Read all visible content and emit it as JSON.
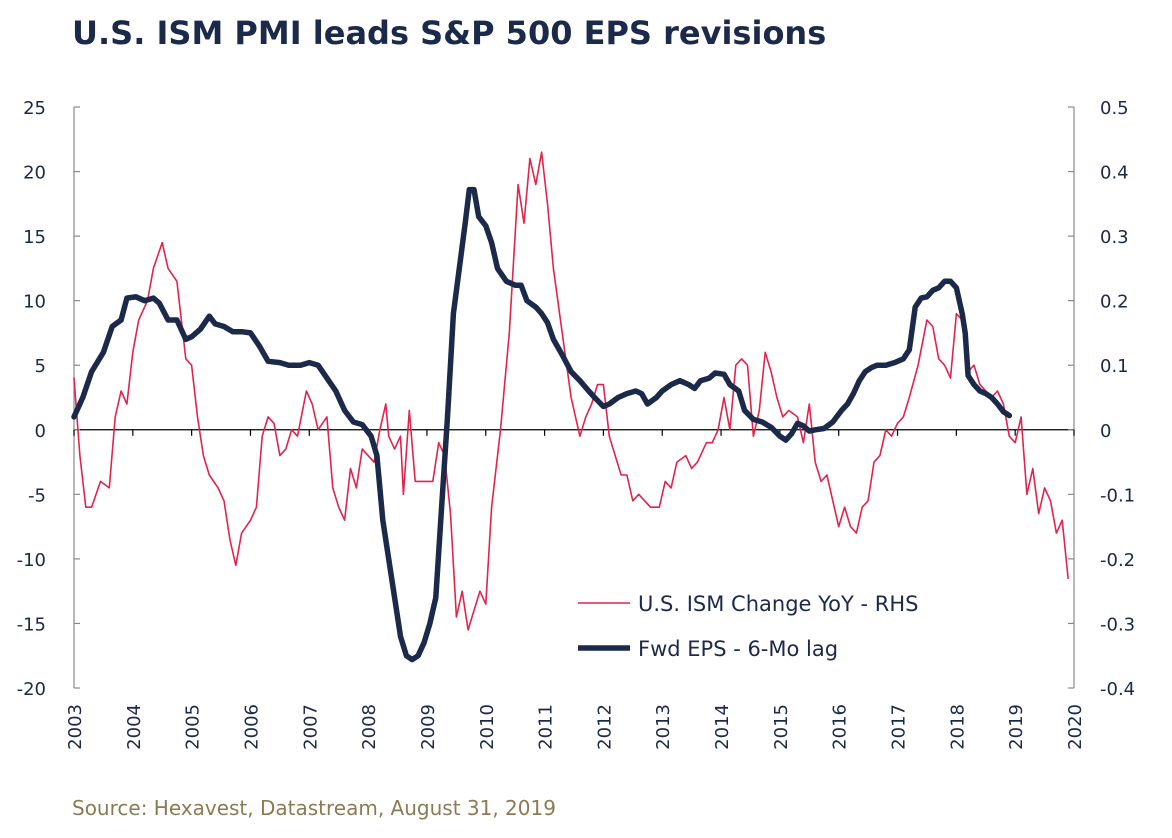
{
  "title": "U.S. ISM PMI leads S&P 500 EPS revisions",
  "source": "Source: Hexavest, Datastream, August 31, 2019",
  "colors": {
    "ism": "#e0244c",
    "eps": "#1b2a4a",
    "axis": "#888888",
    "text": "#1b2a4a",
    "source": "#8a7b52"
  },
  "chart_data": {
    "type": "line",
    "title": "U.S. ISM PMI leads S&P 500 EPS revisions",
    "xlim": [
      2003,
      2020
    ],
    "x_ticks": [
      "2003",
      "2004",
      "2005",
      "2006",
      "2007",
      "2008",
      "2009",
      "2010",
      "2011",
      "2012",
      "2013",
      "2014",
      "2015",
      "2016",
      "2017",
      "2018",
      "2019",
      "2020"
    ],
    "y_left": {
      "ylim": [
        -20,
        25
      ],
      "ticks": [
        "25",
        "20",
        "15",
        "10",
        "5",
        "0",
        "-5",
        "-10",
        "-15",
        "-20"
      ]
    },
    "y_right": {
      "ylim": [
        -0.4,
        0.5
      ],
      "ticks": [
        "0.5",
        "0.4",
        "0.3",
        "0.2",
        "0.1",
        "0",
        "-0.1",
        "-0.2",
        "-0.3",
        "-0.4"
      ]
    },
    "legend_position": "bottom-right",
    "series": [
      {
        "name": "U.S. ISM Change YoY - RHS",
        "axis": "right",
        "style": "thin",
        "points": [
          [
            2003.0,
            0.08
          ],
          [
            2003.1,
            -0.04
          ],
          [
            2003.2,
            -0.12
          ],
          [
            2003.3,
            -0.12
          ],
          [
            2003.45,
            -0.08
          ],
          [
            2003.6,
            -0.09
          ],
          [
            2003.7,
            0.02
          ],
          [
            2003.8,
            0.06
          ],
          [
            2003.9,
            0.04
          ],
          [
            2004.0,
            0.12
          ],
          [
            2004.1,
            0.17
          ],
          [
            2004.25,
            0.2
          ],
          [
            2004.35,
            0.25
          ],
          [
            2004.5,
            0.29
          ],
          [
            2004.6,
            0.25
          ],
          [
            2004.75,
            0.23
          ],
          [
            2004.9,
            0.11
          ],
          [
            2005.0,
            0.1
          ],
          [
            2005.1,
            0.02
          ],
          [
            2005.2,
            -0.04
          ],
          [
            2005.3,
            -0.07
          ],
          [
            2005.45,
            -0.09
          ],
          [
            2005.55,
            -0.11
          ],
          [
            2005.65,
            -0.17
          ],
          [
            2005.75,
            -0.21
          ],
          [
            2005.85,
            -0.16
          ],
          [
            2006.0,
            -0.14
          ],
          [
            2006.1,
            -0.12
          ],
          [
            2006.2,
            -0.01
          ],
          [
            2006.3,
            0.02
          ],
          [
            2006.4,
            0.01
          ],
          [
            2006.5,
            -0.04
          ],
          [
            2006.6,
            -0.03
          ],
          [
            2006.7,
            0.0
          ],
          [
            2006.8,
            -0.01
          ],
          [
            2006.95,
            0.06
          ],
          [
            2007.05,
            0.04
          ],
          [
            2007.15,
            0.0
          ],
          [
            2007.3,
            0.02
          ],
          [
            2007.4,
            -0.09
          ],
          [
            2007.5,
            -0.12
          ],
          [
            2007.6,
            -0.14
          ],
          [
            2007.7,
            -0.06
          ],
          [
            2007.8,
            -0.09
          ],
          [
            2007.9,
            -0.03
          ],
          [
            2008.0,
            -0.04
          ],
          [
            2008.1,
            -0.05
          ],
          [
            2008.2,
            0.0
          ],
          [
            2008.3,
            0.04
          ],
          [
            2008.35,
            -0.01
          ],
          [
            2008.45,
            -0.03
          ],
          [
            2008.55,
            -0.01
          ],
          [
            2008.6,
            -0.1
          ],
          [
            2008.7,
            0.03
          ],
          [
            2008.8,
            -0.08
          ],
          [
            2008.95,
            -0.08
          ],
          [
            2009.1,
            -0.08
          ],
          [
            2009.2,
            -0.02
          ],
          [
            2009.3,
            -0.04
          ],
          [
            2009.4,
            -0.13
          ],
          [
            2009.5,
            -0.29
          ],
          [
            2009.6,
            -0.25
          ],
          [
            2009.7,
            -0.31
          ],
          [
            2009.8,
            -0.28
          ],
          [
            2009.9,
            -0.25
          ],
          [
            2010.0,
            -0.27
          ],
          [
            2010.1,
            -0.12
          ],
          [
            2010.25,
            0.0
          ],
          [
            2010.4,
            0.15
          ],
          [
            2010.55,
            0.38
          ],
          [
            2010.65,
            0.32
          ],
          [
            2010.75,
            0.42
          ],
          [
            2010.85,
            0.38
          ],
          [
            2010.95,
            0.43
          ],
          [
            2011.05,
            0.35
          ],
          [
            2011.15,
            0.25
          ],
          [
            2011.3,
            0.15
          ],
          [
            2011.45,
            0.05
          ],
          [
            2011.6,
            -0.01
          ],
          [
            2011.7,
            0.02
          ],
          [
            2011.8,
            0.04
          ],
          [
            2011.9,
            0.07
          ],
          [
            2012.0,
            0.07
          ],
          [
            2012.1,
            -0.01
          ],
          [
            2012.2,
            -0.04
          ],
          [
            2012.3,
            -0.07
          ],
          [
            2012.4,
            -0.07
          ],
          [
            2012.5,
            -0.11
          ],
          [
            2012.6,
            -0.1
          ],
          [
            2012.7,
            -0.11
          ],
          [
            2012.8,
            -0.12
          ],
          [
            2012.95,
            -0.12
          ],
          [
            2013.05,
            -0.08
          ],
          [
            2013.15,
            -0.09
          ],
          [
            2013.25,
            -0.05
          ],
          [
            2013.4,
            -0.04
          ],
          [
            2013.5,
            -0.06
          ],
          [
            2013.6,
            -0.05
          ],
          [
            2013.75,
            -0.02
          ],
          [
            2013.85,
            -0.02
          ],
          [
            2013.95,
            0.0
          ],
          [
            2014.05,
            0.05
          ],
          [
            2014.15,
            0.0
          ],
          [
            2014.25,
            0.1
          ],
          [
            2014.35,
            0.11
          ],
          [
            2014.45,
            0.1
          ],
          [
            2014.55,
            -0.01
          ],
          [
            2014.65,
            0.03
          ],
          [
            2014.75,
            0.12
          ],
          [
            2014.85,
            0.09
          ],
          [
            2014.95,
            0.05
          ],
          [
            2015.05,
            0.02
          ],
          [
            2015.15,
            0.03
          ],
          [
            2015.3,
            0.02
          ],
          [
            2015.4,
            -0.02
          ],
          [
            2015.5,
            0.04
          ],
          [
            2015.6,
            -0.05
          ],
          [
            2015.7,
            -0.08
          ],
          [
            2015.8,
            -0.07
          ],
          [
            2015.9,
            -0.11
          ],
          [
            2016.0,
            -0.15
          ],
          [
            2016.1,
            -0.12
          ],
          [
            2016.2,
            -0.15
          ],
          [
            2016.3,
            -0.16
          ],
          [
            2016.4,
            -0.12
          ],
          [
            2016.5,
            -0.11
          ],
          [
            2016.6,
            -0.05
          ],
          [
            2016.7,
            -0.04
          ],
          [
            2016.8,
            0.0
          ],
          [
            2016.9,
            -0.01
          ],
          [
            2017.0,
            0.01
          ],
          [
            2017.1,
            0.02
          ],
          [
            2017.2,
            0.05
          ],
          [
            2017.35,
            0.1
          ],
          [
            2017.5,
            0.17
          ],
          [
            2017.6,
            0.16
          ],
          [
            2017.7,
            0.11
          ],
          [
            2017.8,
            0.1
          ],
          [
            2017.9,
            0.08
          ],
          [
            2018.0,
            0.18
          ],
          [
            2018.1,
            0.17
          ],
          [
            2018.2,
            0.09
          ],
          [
            2018.3,
            0.1
          ],
          [
            2018.4,
            0.07
          ],
          [
            2018.5,
            0.06
          ],
          [
            2018.6,
            0.05
          ],
          [
            2018.7,
            0.06
          ],
          [
            2018.8,
            0.04
          ],
          [
            2018.9,
            -0.01
          ],
          [
            2019.0,
            -0.02
          ],
          [
            2019.1,
            0.02
          ],
          [
            2019.2,
            -0.1
          ],
          [
            2019.3,
            -0.06
          ],
          [
            2019.4,
            -0.13
          ],
          [
            2019.5,
            -0.09
          ],
          [
            2019.6,
            -0.11
          ],
          [
            2019.7,
            -0.16
          ],
          [
            2019.8,
            -0.14
          ],
          [
            2019.9,
            -0.23
          ]
        ]
      },
      {
        "name": "Fwd EPS - 6-Mo lag",
        "axis": "left",
        "style": "thick",
        "points": [
          [
            2003.0,
            1.0
          ],
          [
            2003.15,
            2.5
          ],
          [
            2003.3,
            4.5
          ],
          [
            2003.5,
            6.0
          ],
          [
            2003.65,
            8.0
          ],
          [
            2003.8,
            8.5
          ],
          [
            2003.9,
            10.2
          ],
          [
            2004.05,
            10.3
          ],
          [
            2004.2,
            10.0
          ],
          [
            2004.35,
            10.2
          ],
          [
            2004.45,
            9.8
          ],
          [
            2004.6,
            8.5
          ],
          [
            2004.75,
            8.5
          ],
          [
            2004.9,
            7.0
          ],
          [
            2005.0,
            7.2
          ],
          [
            2005.15,
            7.8
          ],
          [
            2005.3,
            8.8
          ],
          [
            2005.4,
            8.2
          ],
          [
            2005.55,
            8.0
          ],
          [
            2005.7,
            7.6
          ],
          [
            2005.85,
            7.6
          ],
          [
            2006.0,
            7.5
          ],
          [
            2006.15,
            6.5
          ],
          [
            2006.3,
            5.3
          ],
          [
            2006.5,
            5.2
          ],
          [
            2006.65,
            5.0
          ],
          [
            2006.85,
            5.0
          ],
          [
            2007.0,
            5.2
          ],
          [
            2007.15,
            5.0
          ],
          [
            2007.3,
            4.0
          ],
          [
            2007.45,
            3.0
          ],
          [
            2007.6,
            1.5
          ],
          [
            2007.75,
            0.6
          ],
          [
            2007.9,
            0.4
          ],
          [
            2008.05,
            -0.5
          ],
          [
            2008.15,
            -2.0
          ],
          [
            2008.25,
            -7.0
          ],
          [
            2008.35,
            -10.0
          ],
          [
            2008.45,
            -13.0
          ],
          [
            2008.55,
            -16.0
          ],
          [
            2008.65,
            -17.5
          ],
          [
            2008.75,
            -17.8
          ],
          [
            2008.85,
            -17.5
          ],
          [
            2008.95,
            -16.5
          ],
          [
            2009.05,
            -15.0
          ],
          [
            2009.15,
            -13.0
          ],
          [
            2009.25,
            -6.0
          ],
          [
            2009.35,
            1.0
          ],
          [
            2009.45,
            9.0
          ],
          [
            2009.55,
            12.5
          ],
          [
            2009.65,
            16.0
          ],
          [
            2009.72,
            18.6
          ],
          [
            2009.8,
            18.6
          ],
          [
            2009.88,
            16.5
          ],
          [
            2010.0,
            15.8
          ],
          [
            2010.1,
            14.5
          ],
          [
            2010.2,
            12.5
          ],
          [
            2010.35,
            11.5
          ],
          [
            2010.5,
            11.2
          ],
          [
            2010.6,
            11.2
          ],
          [
            2010.7,
            10.0
          ],
          [
            2010.85,
            9.5
          ],
          [
            2010.95,
            9.0
          ],
          [
            2011.05,
            8.3
          ],
          [
            2011.15,
            7.0
          ],
          [
            2011.3,
            5.8
          ],
          [
            2011.45,
            4.5
          ],
          [
            2011.6,
            3.8
          ],
          [
            2011.75,
            3.0
          ],
          [
            2011.85,
            2.5
          ],
          [
            2012.0,
            1.8
          ],
          [
            2012.1,
            2.0
          ],
          [
            2012.25,
            2.5
          ],
          [
            2012.4,
            2.8
          ],
          [
            2012.55,
            3.0
          ],
          [
            2012.65,
            2.8
          ],
          [
            2012.75,
            2.0
          ],
          [
            2012.9,
            2.5
          ],
          [
            2013.0,
            3.0
          ],
          [
            2013.15,
            3.5
          ],
          [
            2013.3,
            3.8
          ],
          [
            2013.45,
            3.5
          ],
          [
            2013.55,
            3.2
          ],
          [
            2013.65,
            3.8
          ],
          [
            2013.8,
            4.0
          ],
          [
            2013.9,
            4.4
          ],
          [
            2014.05,
            4.3
          ],
          [
            2014.15,
            3.5
          ],
          [
            2014.3,
            3.0
          ],
          [
            2014.4,
            1.5
          ],
          [
            2014.55,
            0.8
          ],
          [
            2014.7,
            0.6
          ],
          [
            2014.85,
            0.2
          ],
          [
            2015.0,
            -0.5
          ],
          [
            2015.1,
            -0.8
          ],
          [
            2015.2,
            -0.3
          ],
          [
            2015.3,
            0.5
          ],
          [
            2015.4,
            0.3
          ],
          [
            2015.5,
            -0.1
          ],
          [
            2015.6,
            0.0
          ],
          [
            2015.75,
            0.1
          ],
          [
            2015.9,
            0.6
          ],
          [
            2016.05,
            1.5
          ],
          [
            2016.15,
            2.0
          ],
          [
            2016.25,
            2.8
          ],
          [
            2016.35,
            3.8
          ],
          [
            2016.45,
            4.5
          ],
          [
            2016.55,
            4.8
          ],
          [
            2016.65,
            5.0
          ],
          [
            2016.8,
            5.0
          ],
          [
            2016.95,
            5.2
          ],
          [
            2017.1,
            5.5
          ],
          [
            2017.2,
            6.2
          ],
          [
            2017.3,
            9.5
          ],
          [
            2017.4,
            10.2
          ],
          [
            2017.5,
            10.3
          ],
          [
            2017.6,
            10.8
          ],
          [
            2017.7,
            11.0
          ],
          [
            2017.8,
            11.5
          ],
          [
            2017.9,
            11.5
          ],
          [
            2018.0,
            11.0
          ],
          [
            2018.1,
            9.0
          ],
          [
            2018.15,
            7.5
          ],
          [
            2018.2,
            4.2
          ],
          [
            2018.3,
            3.5
          ],
          [
            2018.4,
            3.0
          ],
          [
            2018.5,
            2.8
          ],
          [
            2018.6,
            2.5
          ],
          [
            2018.7,
            2.0
          ],
          [
            2018.8,
            1.4
          ],
          [
            2018.9,
            1.1
          ]
        ]
      }
    ]
  }
}
